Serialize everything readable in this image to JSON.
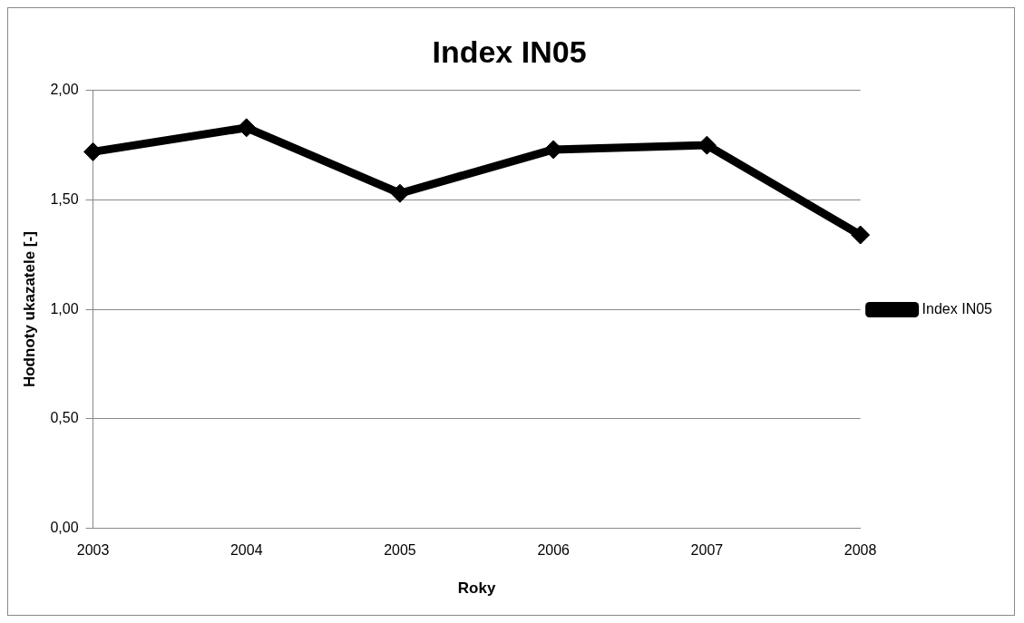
{
  "chart_data": {
    "type": "line",
    "title": "Index IN05",
    "xlabel": "Roky",
    "ylabel": "Hodnoty ukazatele [-]",
    "categories": [
      "2003",
      "2004",
      "2005",
      "2006",
      "2007",
      "2008"
    ],
    "series": [
      {
        "name": "Index IN05",
        "color": "#000000",
        "values": [
          1.72,
          1.83,
          1.53,
          1.73,
          1.75,
          1.34
        ]
      }
    ],
    "ylim": [
      0,
      2
    ],
    "yticks": [
      {
        "value": 0,
        "label": "0,00"
      },
      {
        "value": 0.5,
        "label": "0,50"
      },
      {
        "value": 1,
        "label": "1,00"
      },
      {
        "value": 1.5,
        "label": "1,50"
      },
      {
        "value": 2,
        "label": "2,00"
      }
    ],
    "grid": "y",
    "legend": "right",
    "marker": "diamond",
    "line_style": "solid"
  }
}
